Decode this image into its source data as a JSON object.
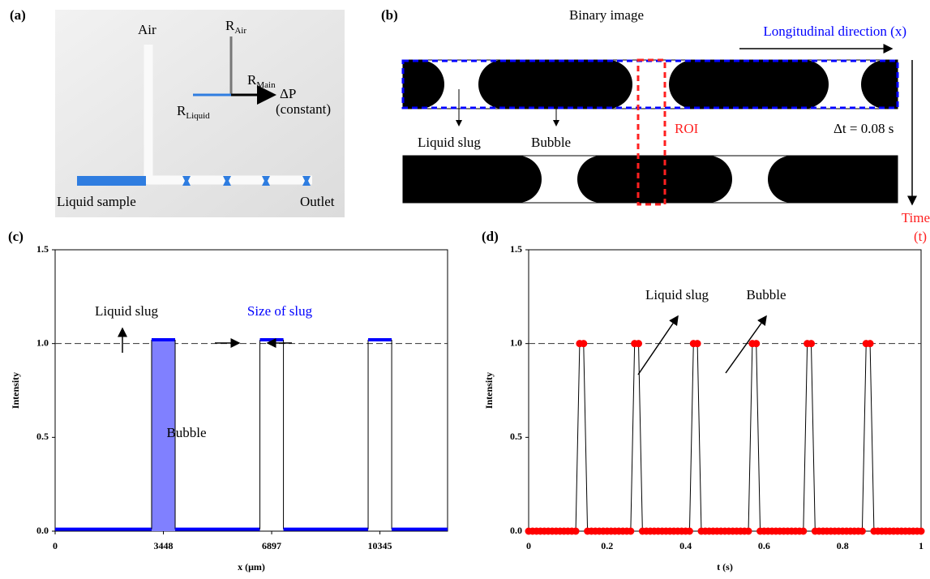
{
  "panel_a": {
    "label": "(a)",
    "air": "Air",
    "r_air": {
      "main": "R",
      "sub": "Air"
    },
    "r_main": {
      "main": "R",
      "sub": "Main"
    },
    "r_liquid": {
      "main": "R",
      "sub": "Liquid"
    },
    "pressure": "ΔP",
    "pressure_note": "(constant)",
    "liquid_sample": "Liquid sample",
    "outlet": "Outlet"
  },
  "panel_b": {
    "label": "(b)",
    "title": "Binary image",
    "direction": "Longitudinal direction (x)",
    "liquid_slug": "Liquid slug",
    "bubble": "Bubble",
    "roi": "ROI",
    "delta_t": "Δt = 0.08 s",
    "time": "Time",
    "time_symbol": "(t)"
  },
  "chart_data": [
    {
      "type": "line",
      "panel_label": "(c)",
      "x_label": "x (μm)",
      "y_label": "Intensity",
      "x": [
        0,
        3073,
        3073,
        3823,
        3823,
        6522,
        6522,
        7272,
        7272,
        9970,
        9970,
        10720,
        10720,
        12500
      ],
      "series": [
        {
          "color": "#0000ff",
          "values": [
            0.01,
            0.01,
            1.02,
            1.02,
            0.01,
            0.01,
            1.02,
            1.02,
            0.01,
            0.01,
            1.02,
            1.02,
            0.01,
            0.01
          ]
        }
      ],
      "edge_color": "#000000",
      "highlight_color": "#8080ff",
      "xlim": [
        0,
        12500
      ],
      "xticks": [
        0,
        3448,
        6897,
        10345
      ],
      "ylim": [
        0,
        1.5
      ],
      "yticks": [
        {
          "value": 0,
          "label": "0.0"
        },
        {
          "value": 0.5,
          "label": "0.5"
        },
        {
          "value": 1,
          "label": "1.0"
        },
        {
          "value": 1.5,
          "label": "1.5"
        }
      ],
      "reference_line": 1,
      "annotations": [
        {
          "text": "Liquid slug",
          "color": "#000000"
        },
        {
          "text": "Size of slug",
          "color": "#0000ff"
        },
        {
          "text": "Bubble",
          "color": "#000000"
        }
      ]
    },
    {
      "type": "line",
      "panel_label": "(d)",
      "x_label": "t (s)",
      "y_label": "Intensity",
      "x": [
        0,
        0.01,
        0.02,
        0.03,
        0.04,
        0.05,
        0.06,
        0.07,
        0.08,
        0.09,
        0.1,
        0.11,
        0.12,
        0.13,
        0.14,
        0.15,
        0.16,
        0.17,
        0.18,
        0.19,
        0.2,
        0.21,
        0.22,
        0.23,
        0.24,
        0.25,
        0.26,
        0.27,
        0.28,
        0.29,
        0.3,
        0.31,
        0.32,
        0.33,
        0.34,
        0.35,
        0.36,
        0.37,
        0.38,
        0.39,
        0.4,
        0.41,
        0.42,
        0.43,
        0.44,
        0.45,
        0.46,
        0.47,
        0.48,
        0.49,
        0.5,
        0.51,
        0.52,
        0.53,
        0.54,
        0.55,
        0.56,
        0.57,
        0.58,
        0.59,
        0.6,
        0.61,
        0.62,
        0.63,
        0.64,
        0.65,
        0.66,
        0.67,
        0.68,
        0.69,
        0.7,
        0.71,
        0.72,
        0.73,
        0.74,
        0.75,
        0.76,
        0.77,
        0.78,
        0.79,
        0.8,
        0.81,
        0.82,
        0.83,
        0.84,
        0.85,
        0.86,
        0.87,
        0.88,
        0.89,
        0.9,
        0.91,
        0.92,
        0.93,
        0.94,
        0.95,
        0.96,
        0.97,
        0.98,
        0.99,
        1
      ],
      "series": [
        {
          "color": "#000000",
          "marker_color": "#ff0000",
          "values": [
            0,
            0,
            0,
            0,
            0,
            0,
            0,
            0,
            0,
            0,
            0,
            0,
            0,
            1,
            1,
            0,
            0,
            0,
            0,
            0,
            0,
            0,
            0,
            0,
            0,
            0,
            0,
            1,
            1,
            0,
            0,
            0,
            0,
            0,
            0,
            0,
            0,
            0,
            0,
            0,
            0,
            0,
            1,
            1,
            0,
            0,
            0,
            0,
            0,
            0,
            0,
            0,
            0,
            0,
            0,
            0,
            0,
            1,
            1,
            0,
            0,
            0,
            0,
            0,
            0,
            0,
            0,
            0,
            0,
            0,
            0,
            1,
            1,
            0,
            0,
            0,
            0,
            0,
            0,
            0,
            0,
            0,
            0,
            0,
            0,
            0,
            1,
            1,
            0,
            0,
            0,
            0,
            0,
            0,
            0,
            0,
            0,
            0,
            0,
            0,
            0
          ]
        }
      ],
      "xlim": [
        0,
        1
      ],
      "xticks": [
        0,
        0.2,
        0.4,
        0.6,
        0.8,
        1
      ],
      "ylim": [
        0,
        1.5
      ],
      "yticks": [
        {
          "value": 0,
          "label": "0.0"
        },
        {
          "value": 0.5,
          "label": "0.5"
        },
        {
          "value": 1,
          "label": "1.0"
        },
        {
          "value": 1.5,
          "label": "1.5"
        }
      ],
      "reference_line": 1,
      "annotations": [
        {
          "text": "Liquid slug",
          "color": "#000000"
        },
        {
          "text": "Bubble",
          "color": "#000000"
        }
      ]
    }
  ]
}
